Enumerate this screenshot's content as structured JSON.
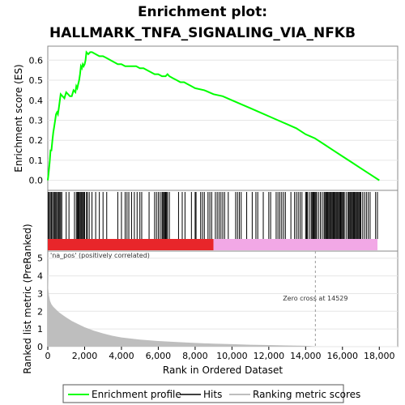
{
  "title_line1": "Enrichment plot:",
  "title_line2": "HALLMARK_TNFA_SIGNALING_VIA_NFKB",
  "colors": {
    "es_line": "#00ff00",
    "hits": "#000000",
    "metric_fill": "#bebebe",
    "pos_bar": "#e8262a",
    "neg_bar": "#f2a8e6",
    "label_pos": "#e8262a",
    "zero_cross_line": "#999999"
  },
  "chart_data": [
    {
      "type": "line",
      "name": "enrichment-profile",
      "ylabel": "Enrichment score (ES)",
      "xlim": [
        0,
        19000
      ],
      "ylim": [
        -0.05,
        0.67
      ],
      "yticks": [
        "0.0",
        "0.1",
        "0.2",
        "0.3",
        "0.4",
        "0.5",
        "0.6"
      ],
      "ytick_values": [
        0.0,
        0.1,
        0.2,
        0.3,
        0.4,
        0.5,
        0.6
      ],
      "x": [
        0,
        50,
        100,
        150,
        200,
        250,
        300,
        350,
        400,
        450,
        500,
        550,
        600,
        700,
        800,
        900,
        1000,
        1100,
        1200,
        1300,
        1400,
        1500,
        1550,
        1600,
        1650,
        1700,
        1750,
        1800,
        1850,
        1900,
        1950,
        2000,
        2050,
        2100,
        2200,
        2300,
        2400,
        2600,
        2800,
        3000,
        3200,
        3400,
        3600,
        3800,
        4000,
        4200,
        4400,
        4600,
        4800,
        5000,
        5200,
        5400,
        5600,
        5800,
        6000,
        6200,
        6300,
        6400,
        6500,
        6600,
        6800,
        7000,
        7200,
        7400,
        7600,
        7800,
        8000,
        8500,
        9000,
        9500,
        10000,
        10500,
        11000,
        11500,
        12000,
        12500,
        13000,
        13500,
        14000,
        14500,
        15000,
        15500,
        16000,
        16500,
        17000,
        17500,
        18000
      ],
      "y": [
        0.0,
        0.04,
        0.09,
        0.15,
        0.15,
        0.2,
        0.24,
        0.27,
        0.3,
        0.33,
        0.34,
        0.33,
        0.36,
        0.43,
        0.42,
        0.41,
        0.44,
        0.43,
        0.42,
        0.42,
        0.45,
        0.44,
        0.47,
        0.46,
        0.48,
        0.5,
        0.53,
        0.57,
        0.56,
        0.58,
        0.57,
        0.58,
        0.6,
        0.64,
        0.63,
        0.64,
        0.64,
        0.63,
        0.62,
        0.62,
        0.61,
        0.6,
        0.59,
        0.58,
        0.58,
        0.57,
        0.57,
        0.57,
        0.57,
        0.56,
        0.56,
        0.55,
        0.54,
        0.53,
        0.53,
        0.52,
        0.52,
        0.52,
        0.53,
        0.52,
        0.51,
        0.5,
        0.49,
        0.49,
        0.48,
        0.47,
        0.46,
        0.45,
        0.43,
        0.42,
        0.4,
        0.38,
        0.36,
        0.34,
        0.32,
        0.3,
        0.28,
        0.26,
        0.23,
        0.21,
        0.18,
        0.15,
        0.12,
        0.09,
        0.06,
        0.03,
        0.0
      ]
    },
    {
      "type": "scatter",
      "name": "hits",
      "description_values": "positions of gene set members in the ranked list",
      "x": [
        30,
        80,
        140,
        200,
        260,
        320,
        380,
        430,
        480,
        540,
        600,
        650,
        700,
        760,
        1000,
        1150,
        1450,
        1550,
        1600,
        1650,
        1700,
        1750,
        1800,
        1850,
        1900,
        1950,
        2000,
        2100,
        2150,
        2250,
        2400,
        2600,
        2800,
        3000,
        3200,
        3800,
        4000,
        4200,
        4300,
        4400,
        4550,
        4700,
        4850,
        5000,
        5100,
        5500,
        5800,
        5900,
        6000,
        6100,
        6200,
        6250,
        6300,
        6350,
        6400,
        6450,
        6500,
        6600,
        7100,
        7300,
        7450,
        7800,
        8000,
        8050,
        8300,
        8400,
        8500,
        8700,
        8800,
        8900,
        9100,
        9200,
        9300,
        9400,
        9500,
        9600,
        9800,
        10200,
        10300,
        10400,
        10500,
        10800,
        11100,
        11300,
        11400,
        11700,
        12000,
        12100,
        12400,
        12500,
        12600,
        12700,
        12800,
        12900,
        13200,
        13400,
        13500,
        13600,
        13700,
        13800,
        14000,
        14050,
        14100,
        14200,
        14300,
        14350,
        14400,
        14450,
        14500,
        14550,
        14600,
        14700,
        14800,
        14900,
        15000,
        15050,
        15100,
        15150,
        15200,
        15250,
        15300,
        15350,
        15400,
        15450,
        15500,
        15550,
        15600,
        15650,
        15700,
        15750,
        15800,
        15850,
        15900,
        15950,
        16000,
        16050,
        16100,
        16200,
        16300,
        16350,
        16400,
        16450,
        16500,
        16550,
        16600,
        16650,
        16700,
        16750,
        16800,
        16850,
        16900,
        16950,
        17000,
        17100,
        17200,
        17300,
        17400,
        17500,
        17800,
        17900
      ]
    },
    {
      "type": "area",
      "name": "ranking-metric-scores",
      "ylabel": "Ranked list metric (PreRanked)",
      "xlabel": "Rank in Ordered Dataset",
      "xlim": [
        0,
        19000
      ],
      "ylim": [
        0,
        5.4
      ],
      "yticks": [
        "0",
        "1",
        "2",
        "3",
        "4",
        "5"
      ],
      "ytick_values": [
        0,
        1,
        2,
        3,
        4,
        5
      ],
      "xticks": [
        "0",
        "2,000",
        "4,000",
        "6,000",
        "8,000",
        "10,000",
        "12,000",
        "14,000",
        "16,000",
        "18,000"
      ],
      "xtick_values": [
        0,
        2000,
        4000,
        6000,
        8000,
        10000,
        12000,
        14000,
        16000,
        18000
      ],
      "x": [
        0,
        20,
        60,
        120,
        200,
        300,
        450,
        600,
        800,
        1000,
        1300,
        1600,
        2000,
        2500,
        3000,
        3500,
        4000,
        5000,
        6000,
        7000,
        8000,
        9000,
        10000,
        11000,
        12000,
        13000,
        14000,
        14529,
        14530,
        16000,
        18000
      ],
      "y": [
        4.3,
        3.3,
        2.9,
        2.6,
        2.4,
        2.25,
        2.1,
        1.95,
        1.8,
        1.65,
        1.45,
        1.3,
        1.1,
        0.9,
        0.75,
        0.62,
        0.52,
        0.4,
        0.32,
        0.26,
        0.21,
        0.17,
        0.14,
        0.11,
        0.09,
        0.07,
        0.05,
        0.01,
        0.0,
        0.0,
        0.0
      ],
      "zero_cross_label": "Zero cross at 14529",
      "zero_cross_x": 14529,
      "pos_label": "'na_pos' (positively correlated)",
      "pos_end": 9000,
      "neg_start": 9000,
      "neg_end": 17900
    }
  ],
  "legend": {
    "enrichment_profile": "Enrichment profile",
    "hits": "Hits",
    "ranking_metric": "Ranking metric scores"
  }
}
